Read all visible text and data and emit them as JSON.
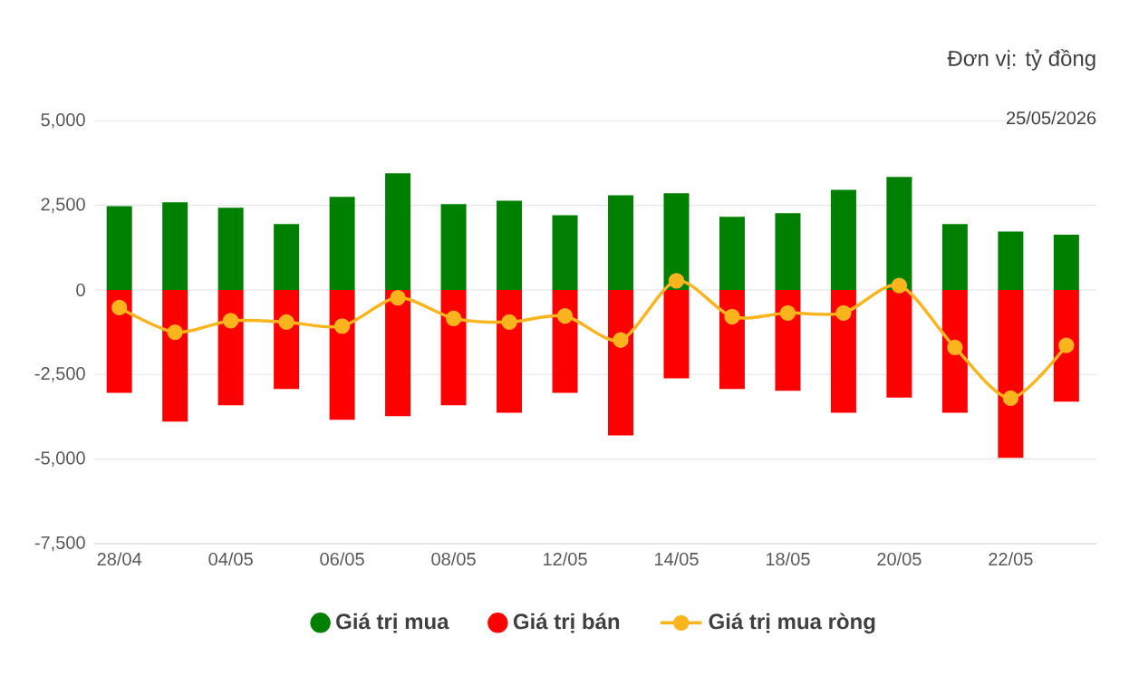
{
  "chart_data": {
    "type": "bar",
    "stacked": true,
    "categories": [
      "28/04",
      null,
      "04/05",
      null,
      "06/05",
      null,
      "08/05",
      null,
      "12/05",
      null,
      "14/05",
      null,
      "18/05",
      null,
      "20/05",
      null,
      "22/05",
      null
    ],
    "series": [
      {
        "name": "Giá trị mua",
        "color": "#008000",
        "values": [
          2480,
          2590,
          2430,
          1950,
          2750,
          3450,
          2540,
          2640,
          2210,
          2800,
          2860,
          2160,
          2270,
          2960,
          3340,
          1950,
          1730,
          1630
        ]
      },
      {
        "name": "Giá trị bán",
        "color": "#ff0000",
        "values": [
          -3040,
          -3890,
          -3410,
          -2930,
          -3840,
          -3730,
          -3410,
          -3630,
          -3040,
          -4300,
          -2610,
          -2930,
          -2980,
          -3630,
          -3180,
          -3630,
          -4960,
          -3300
        ]
      },
      {
        "name": "Giá trị mua ròng",
        "type": "line",
        "color": "#fbb41c",
        "marker": "circle",
        "values": [
          -520,
          -1250,
          -910,
          -950,
          -1070,
          -230,
          -840,
          -950,
          -770,
          -1480,
          270,
          -790,
          -680,
          -680,
          130,
          -1700,
          -3200,
          -1640
        ]
      }
    ],
    "ylim": [
      -7500,
      5000
    ],
    "yticks": [
      {
        "value": -7500,
        "label": "-7,500"
      },
      {
        "value": -5000,
        "label": "-5,000"
      },
      {
        "value": -2500,
        "label": "-2,500"
      },
      0,
      {
        "value": 2500,
        "label": "2,500"
      },
      {
        "value": 5000,
        "label": "5,000"
      }
    ],
    "grid": "y",
    "legend": "bottom",
    "annotations": [
      "Đơn vị: tỷ đồng",
      "25/05/2026"
    ]
  }
}
